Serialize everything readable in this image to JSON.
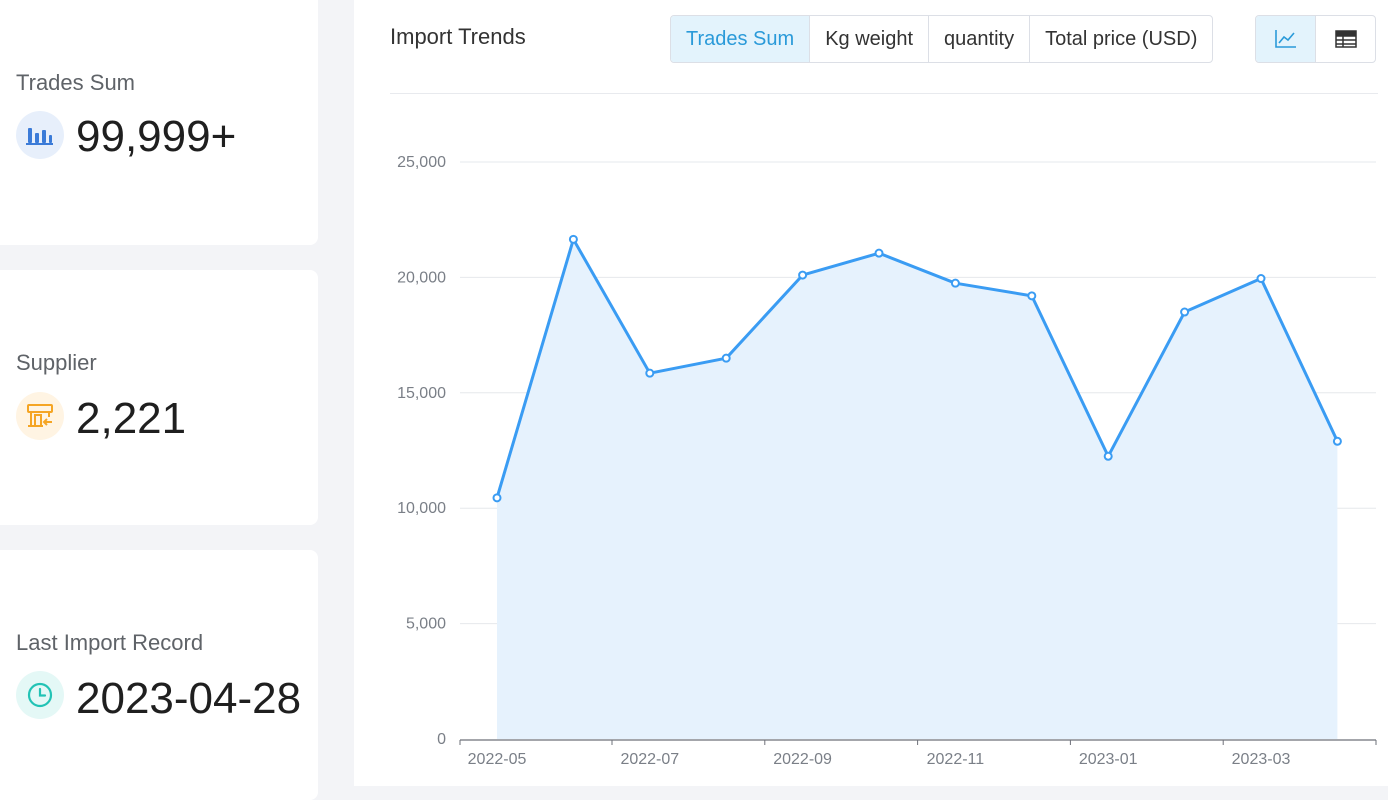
{
  "summary": {
    "trades": {
      "label": "Trades Sum",
      "value": "99,999+",
      "icon": "bar-chart-icon",
      "color": "#3b7bd8",
      "bg": "#e7effb"
    },
    "supplier": {
      "label": "Supplier",
      "value": "2,221",
      "icon": "shop-icon",
      "color": "#f5a524",
      "bg": "#fff4e3"
    },
    "last_import": {
      "label": "Last Import Record",
      "value": "2023-04-28",
      "icon": "clock-icon",
      "color": "#22c3b5",
      "bg": "#e4f8f6"
    }
  },
  "panel": {
    "title": "Import Trends",
    "tabs": [
      {
        "label": "Trades Sum",
        "active": true
      },
      {
        "label": "Kg weight",
        "active": false
      },
      {
        "label": "quantity",
        "active": false
      },
      {
        "label": "Total price (USD)",
        "active": false
      }
    ],
    "view_toggle": [
      {
        "icon": "line-chart-icon",
        "active": true
      },
      {
        "icon": "table-icon",
        "active": false
      }
    ]
  },
  "colors": {
    "accent": "#2a9ad9",
    "line": "#3a9cf3",
    "area": "#e6f2fd"
  },
  "chart_data": {
    "type": "line",
    "x": [
      "2022-05",
      "2022-06",
      "2022-07",
      "2022-08",
      "2022-09",
      "2022-10",
      "2022-11",
      "2022-12",
      "2023-01",
      "2023-02",
      "2023-03",
      "2023-04"
    ],
    "x_tick_labels": [
      "2022-05",
      "2022-07",
      "2022-09",
      "2022-11",
      "2023-01",
      "2023-03"
    ],
    "values": [
      10450,
      21650,
      15850,
      16500,
      20100,
      21050,
      19750,
      19200,
      12250,
      18500,
      19950,
      12900
    ],
    "yticks": [
      0,
      5000,
      10000,
      15000,
      20000,
      25000
    ],
    "ytick_labels": [
      "0",
      "5,000",
      "10,000",
      "15,000",
      "20,000",
      "25,000"
    ],
    "ylim": [
      0,
      25000
    ],
    "area_fill": true,
    "grid": true
  }
}
